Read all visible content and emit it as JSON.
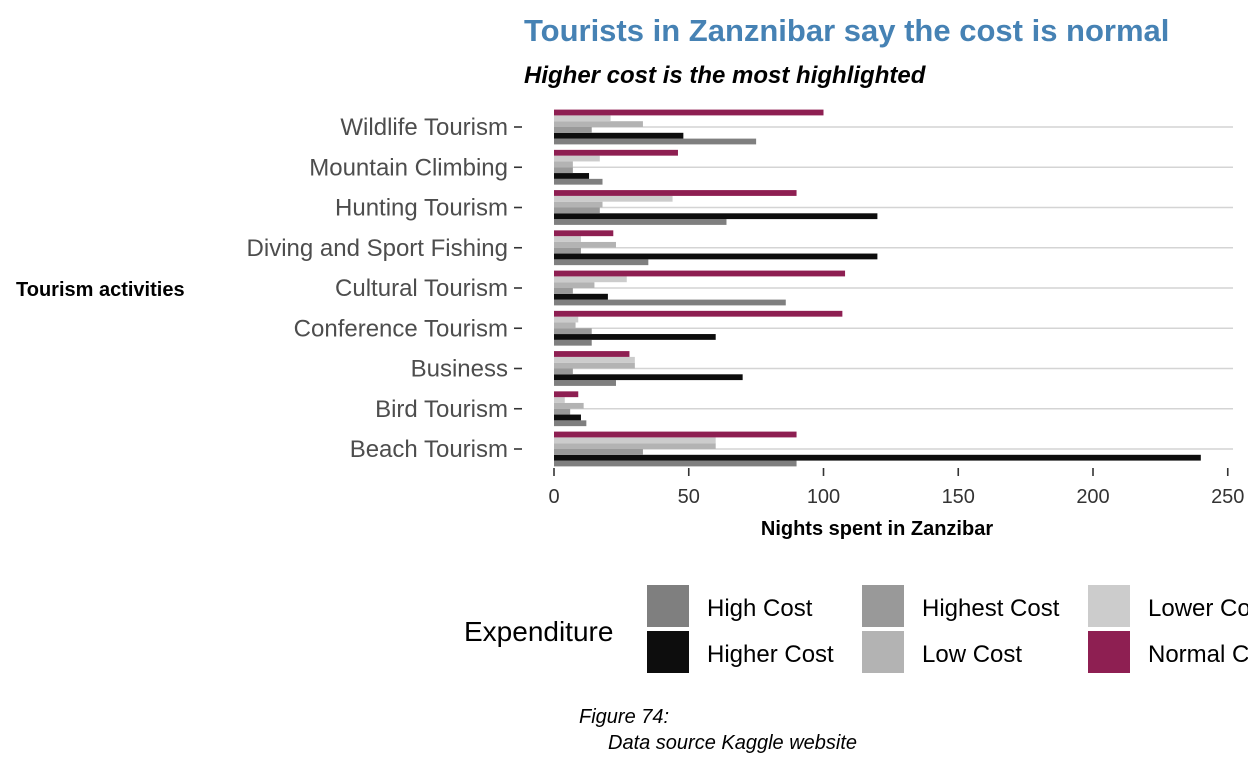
{
  "chart_data": {
    "type": "bar",
    "orientation": "horizontal",
    "title": "Tourists in Zanznibar say the cost is normal",
    "subtitle": "Higher cost is the most highlighted",
    "xlabel": "Nights spent in Zanzibar",
    "ylabel": "Tourism activities",
    "xlim": [
      0,
      250
    ],
    "xticks": [
      0,
      50,
      100,
      150,
      200,
      250
    ],
    "grid": "horizontal",
    "legend_title": "Expenditure",
    "legend_position": "bottom",
    "caption_line1": "Figure 74:",
    "caption_line2": "Data source Kaggle website",
    "categories": [
      "Beach Tourism",
      "Bird Tourism",
      "Business",
      "Conference Tourism",
      "Cultural Tourism",
      "Diving and Sport Fishing",
      "Hunting Tourism",
      "Mountain Climbing",
      "Wildlife Tourism"
    ],
    "series": [
      {
        "name": "High Cost",
        "color": "#7f7f7f",
        "values": [
          90,
          12,
          23,
          14,
          86,
          35,
          64,
          18,
          75
        ]
      },
      {
        "name": "Higher Cost",
        "color": "#0d0d0d",
        "values": [
          240,
          10,
          70,
          60,
          20,
          120,
          120,
          13,
          48
        ]
      },
      {
        "name": "Highest Cost",
        "color": "#999999",
        "values": [
          33,
          6,
          7,
          14,
          7,
          10,
          17,
          7,
          14
        ]
      },
      {
        "name": "Low Cost",
        "color": "#b3b3b3",
        "values": [
          60,
          11,
          30,
          8,
          15,
          23,
          18,
          7,
          33
        ]
      },
      {
        "name": "Lower Cost",
        "color": "#cccccc",
        "values": [
          60,
          4,
          30,
          9,
          27,
          10,
          44,
          17,
          21
        ]
      },
      {
        "name": "Normal Cost",
        "color": "#8e1f52",
        "values": [
          90,
          9,
          28,
          107,
          108,
          22,
          90,
          46,
          100
        ]
      }
    ],
    "legend_labels": [
      "High Cost",
      "Higher Cost",
      "Highest Cost",
      "Low Cost",
      "Lower Cost",
      "Normal Cost"
    ],
    "title_color": "#4682b4"
  }
}
